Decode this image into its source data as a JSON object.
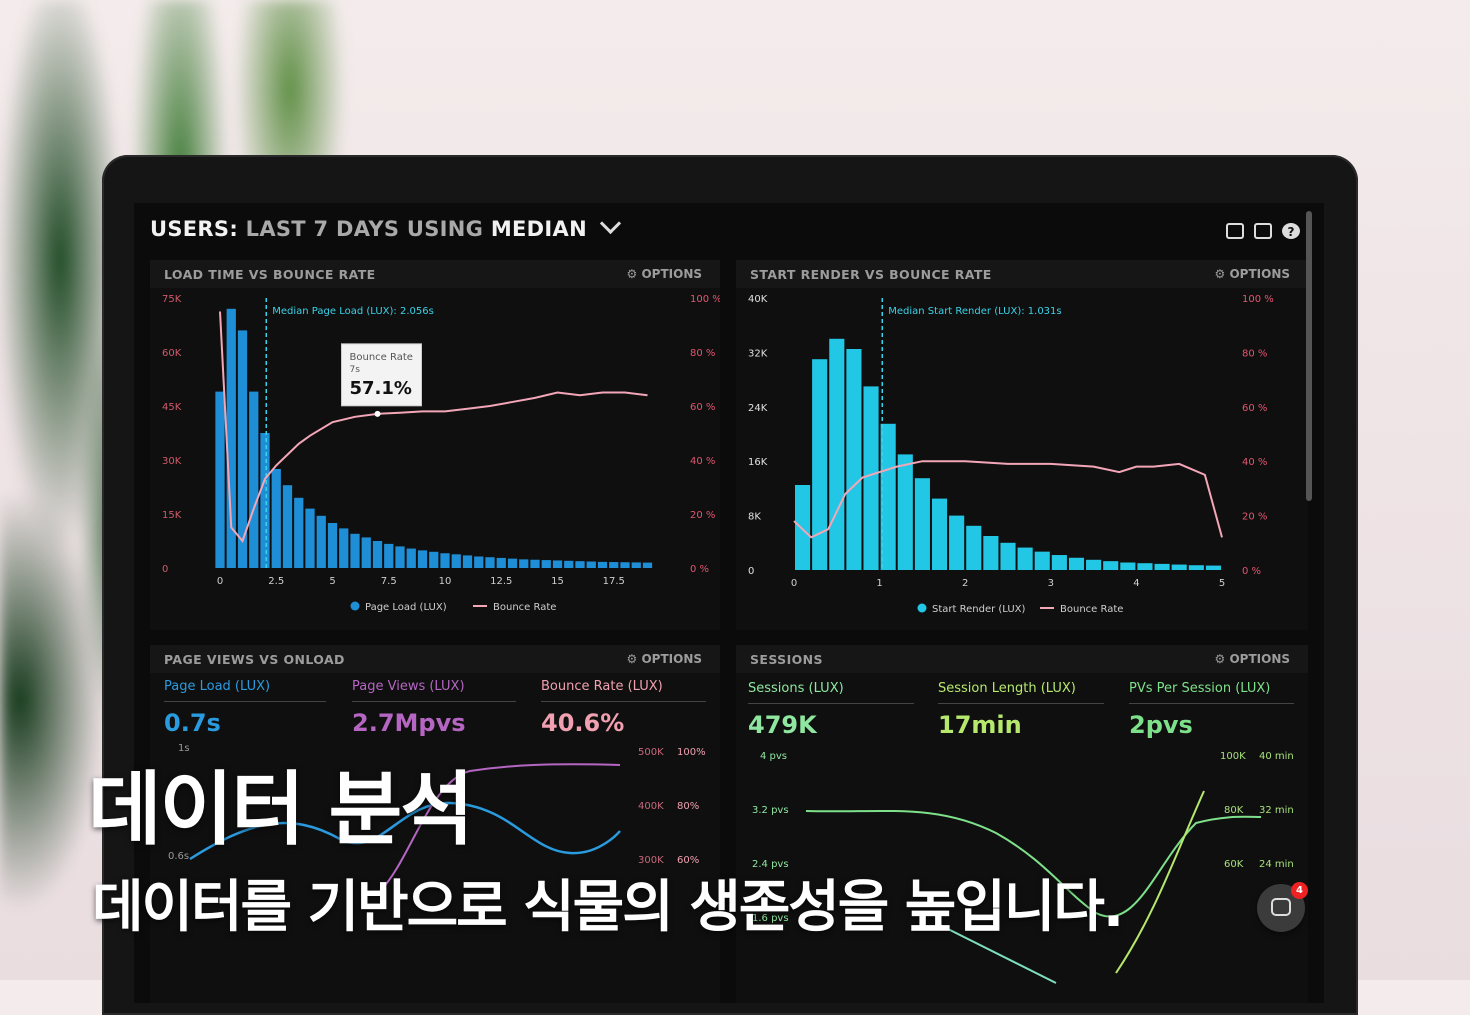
{
  "header": {
    "users_label": "USERS:",
    "last_7_days": "LAST 7 DAYS",
    "using": "USING",
    "median": "MEDIAN"
  },
  "options_label": "⚙ OPTIONS",
  "panels": {
    "load_time": {
      "title": "LOAD TIME VS BOUNCE RATE",
      "median_label": "Median Page Load (LUX): 2.056s",
      "tooltip_title": "Bounce Rate",
      "tooltip_sub": "7s",
      "tooltip_value": "57.1%",
      "y_left_ticks": [
        "75K",
        "60K",
        "45K",
        "30K",
        "15K",
        "0"
      ],
      "y_right_ticks": [
        "100 %",
        "80 %",
        "60 %",
        "40 %",
        "20 %",
        "0 %"
      ],
      "x_ticks": [
        "0",
        "2.5",
        "5",
        "7.5",
        "10",
        "12.5",
        "15",
        "17.5"
      ],
      "legend_bar": "Page Load (LUX)",
      "legend_line": "Bounce Rate"
    },
    "start_render": {
      "title": "START RENDER VS BOUNCE RATE",
      "median_label": "Median Start Render (LUX): 1.031s",
      "y_left_ticks": [
        "40K",
        "32K",
        "24K",
        "16K",
        "8K",
        "0"
      ],
      "y_right_ticks": [
        "100 %",
        "80 %",
        "60 %",
        "40 %",
        "20 %",
        "0 %"
      ],
      "x_ticks": [
        "0",
        "1",
        "2",
        "3",
        "4",
        "5"
      ],
      "legend_bar": "Start Render (LUX)",
      "legend_line": "Bounce Rate"
    },
    "page_views": {
      "title": "PAGE VIEWS VS ONLOAD",
      "metrics": [
        {
          "label": "Page Load (LUX)",
          "value": "0.7s"
        },
        {
          "label": "Page Views (LUX)",
          "value": "2.7Mpvs"
        },
        {
          "label": "Bounce Rate (LUX)",
          "value": "40.6%"
        }
      ],
      "y_left_ticks": [
        "1s",
        "0.6s"
      ],
      "y_right_ticks": [
        "500K",
        "400K",
        "300K"
      ],
      "y_right2_ticks": [
        "100%",
        "80%",
        "60%"
      ]
    },
    "sessions": {
      "title": "SESSIONS",
      "metrics": [
        {
          "label": "Sessions (LUX)",
          "value": "479K"
        },
        {
          "label": "Session Length (LUX)",
          "value": "17min"
        },
        {
          "label": "PVs Per Session (LUX)",
          "value": "2pvs"
        }
      ],
      "y_left_ticks": [
        "4 pvs",
        "3.2 pvs",
        "2.4 pvs",
        "1.6 pvs"
      ],
      "y_right_ticks": [
        "100K",
        "80K",
        "60K"
      ],
      "y_right2_ticks": [
        "40 min",
        "32 min",
        "24 min"
      ]
    }
  },
  "chart_data": [
    {
      "type": "bar",
      "title": "LOAD TIME VS BOUNCE RATE",
      "xlabel": "",
      "ylabel": "",
      "ylim": [
        0,
        75000
      ],
      "x_range": [
        0,
        20
      ],
      "series": [
        {
          "name": "Page Load (LUX)",
          "bar_width": 0.5,
          "x": [
            0,
            0.5,
            1,
            1.5,
            2,
            2.5,
            3,
            3.5,
            4,
            4.5,
            5,
            5.5,
            6,
            6.5,
            7,
            7.5,
            8,
            8.5,
            9,
            9.5,
            10,
            10.5,
            11,
            11.5,
            12,
            12.5,
            13,
            13.5,
            14,
            14.5,
            15,
            15.5,
            16,
            16.5,
            17,
            17.5,
            18,
            18.5,
            19
          ],
          "values": [
            49000,
            72000,
            66000,
            49000,
            37500,
            27500,
            23000,
            19500,
            16500,
            14500,
            12500,
            11000,
            9500,
            8500,
            7500,
            6700,
            6000,
            5400,
            4900,
            4500,
            4100,
            3800,
            3500,
            3200,
            3000,
            2800,
            2600,
            2400,
            2300,
            2200,
            2100,
            2000,
            1900,
            1800,
            1700,
            1650,
            1600,
            1550,
            1500
          ]
        },
        {
          "name": "Bounce Rate",
          "axis": "right",
          "ylim": [
            0,
            100
          ],
          "x": [
            0,
            0.5,
            1,
            1.5,
            2,
            2.5,
            3,
            3.5,
            4,
            5,
            6,
            7,
            8,
            9,
            10,
            11,
            12,
            13,
            14,
            15,
            16,
            17,
            18,
            19
          ],
          "values": [
            95,
            15,
            10,
            22,
            33,
            38,
            42,
            46,
            49,
            54,
            56,
            57.1,
            57.5,
            58,
            58,
            59,
            60,
            61.5,
            63,
            65,
            64,
            65,
            65,
            64
          ]
        }
      ],
      "annotations": [
        {
          "x": 2.056,
          "label": "Median Page Load (LUX): 2.056s"
        }
      ]
    },
    {
      "type": "bar",
      "title": "START RENDER VS BOUNCE RATE",
      "xlabel": "",
      "ylabel": "",
      "ylim": [
        0,
        40000
      ],
      "x_range": [
        0,
        5
      ],
      "series": [
        {
          "name": "Start Render (LUX)",
          "bar_width": 0.2,
          "x": [
            0.1,
            0.3,
            0.5,
            0.7,
            0.9,
            1.1,
            1.3,
            1.5,
            1.7,
            1.9,
            2.1,
            2.3,
            2.5,
            2.7,
            2.9,
            3.1,
            3.3,
            3.5,
            3.7,
            3.9,
            4.1,
            4.3,
            4.5,
            4.7,
            4.9
          ],
          "values": [
            12500,
            31000,
            34000,
            32500,
            27000,
            21500,
            17000,
            13500,
            10500,
            8000,
            6500,
            5000,
            4000,
            3300,
            2700,
            2200,
            1800,
            1500,
            1300,
            1100,
            1000,
            900,
            800,
            700,
            650
          ]
        },
        {
          "name": "Bounce Rate",
          "axis": "right",
          "ylim": [
            0,
            100
          ],
          "x": [
            0,
            0.2,
            0.4,
            0.6,
            0.8,
            1,
            1.2,
            1.5,
            2,
            2.5,
            3,
            3.5,
            3.8,
            4,
            4.2,
            4.5,
            4.8,
            5
          ],
          "values": [
            18,
            12,
            15,
            28,
            34,
            36,
            38,
            40,
            40,
            39,
            39,
            38,
            36,
            38,
            38,
            39,
            35,
            12
          ]
        }
      ],
      "annotations": [
        {
          "x": 1.031,
          "label": "Median Start Render (LUX): 1.031s"
        }
      ]
    }
  ],
  "overlay": {
    "title": "데이터 분석",
    "subtitle": "데이터를 기반으로 식물의 생존성을 높입니다."
  },
  "chat_badge": "4",
  "colors": {
    "bar_blue": "#1e8fd6",
    "bar_cyan": "#23c7e6",
    "bounce_pink": "#f3a6b8",
    "median_cyan": "#3ad2e8",
    "pink_metric": "#c070c8",
    "salmon_metric": "#f0a0b0",
    "green_metric": "#7ee08a"
  }
}
